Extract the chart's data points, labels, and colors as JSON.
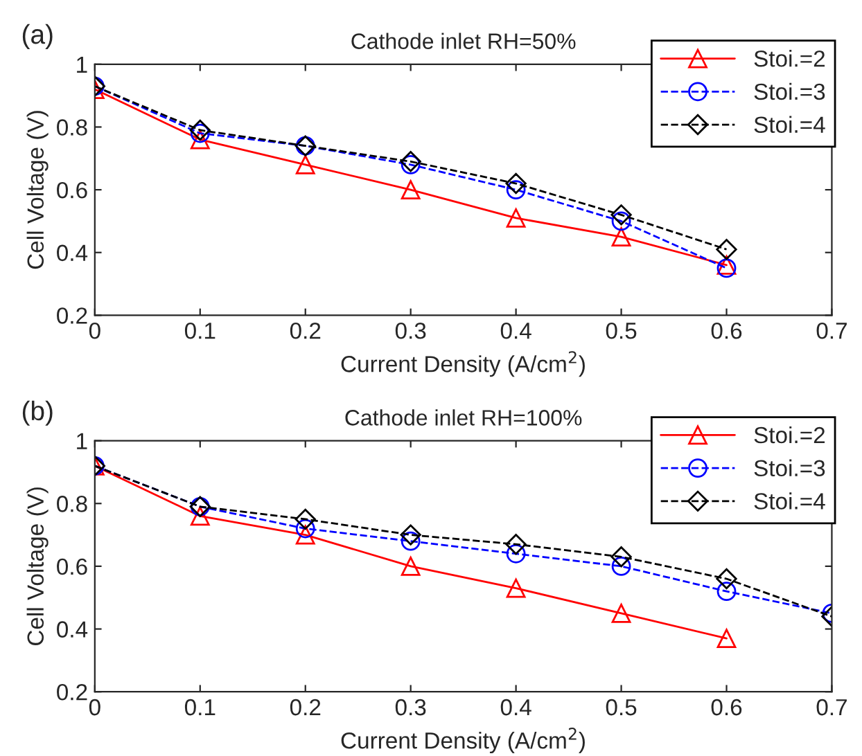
{
  "chart_data": [
    {
      "type": "line",
      "title": "Cathode inlet RH=50%",
      "xlabel": "Current Density (A/cm$^{2}$)",
      "ylabel": "Cell Voltage (V)",
      "annotations": [
        "(a)"
      ],
      "x": [
        0,
        0.1,
        0.2,
        0.3,
        0.4,
        0.5,
        0.6
      ],
      "series": [
        {
          "name": "Stoi.=2",
          "color": "#ff0000",
          "marker": "triangle",
          "line_style": "solid",
          "values": [
            0.92,
            0.76,
            0.68,
            0.6,
            0.51,
            0.45,
            0.36
          ]
        },
        {
          "name": "Stoi.=3",
          "color": "#0000ff",
          "marker": "circle",
          "line_style": "dashed",
          "values": [
            0.93,
            0.78,
            0.74,
            0.68,
            0.6,
            0.5,
            0.35
          ]
        },
        {
          "name": "Stoi.=4",
          "color": "#000000",
          "marker": "diamond",
          "line_style": "dashed",
          "values": [
            0.93,
            0.79,
            0.74,
            0.69,
            0.62,
            0.52,
            0.41
          ]
        }
      ],
      "xlim": [
        0,
        0.7
      ],
      "xticks": [
        0,
        0.1,
        0.2,
        0.3,
        0.4,
        0.5,
        0.6,
        0.7
      ],
      "ylim": [
        0.2,
        1
      ],
      "yticks": [
        0.2,
        0.4,
        0.6,
        0.8,
        1
      ],
      "grid": false,
      "legend": "top right"
    },
    {
      "type": "line",
      "title": "Cathode inlet RH=100%",
      "xlabel": "Current Density (A/cm$^{2}$)",
      "ylabel": "Cell Voltage (V)",
      "annotations": [
        "(b)"
      ],
      "series": [
        {
          "name": "Stoi.=2",
          "color": "#ff0000",
          "marker": "triangle",
          "line_style": "solid",
          "x": [
            0,
            0.1,
            0.2,
            0.3,
            0.4,
            0.5,
            0.6
          ],
          "values": [
            0.92,
            0.76,
            0.7,
            0.6,
            0.53,
            0.45,
            0.37
          ]
        },
        {
          "name": "Stoi.=3",
          "color": "#0000ff",
          "marker": "circle",
          "line_style": "dashed",
          "x": [
            0,
            0.1,
            0.2,
            0.3,
            0.4,
            0.5,
            0.6,
            0.7
          ],
          "values": [
            0.92,
            0.79,
            0.72,
            0.68,
            0.64,
            0.6,
            0.52,
            0.45
          ]
        },
        {
          "name": "Stoi.=4",
          "color": "#000000",
          "marker": "diamond",
          "line_style": "dashed",
          "x": [
            0,
            0.1,
            0.2,
            0.3,
            0.4,
            0.5,
            0.6,
            0.7
          ],
          "values": [
            0.92,
            0.79,
            0.75,
            0.7,
            0.67,
            0.63,
            0.56,
            0.44
          ]
        }
      ],
      "xlim": [
        0,
        0.7
      ],
      "xticks": [
        0,
        0.1,
        0.2,
        0.3,
        0.4,
        0.5,
        0.6,
        0.7
      ],
      "ylim": [
        0.2,
        1
      ],
      "yticks": [
        0.2,
        0.4,
        0.6,
        0.8,
        1
      ],
      "grid": false,
      "legend": "top right"
    }
  ]
}
